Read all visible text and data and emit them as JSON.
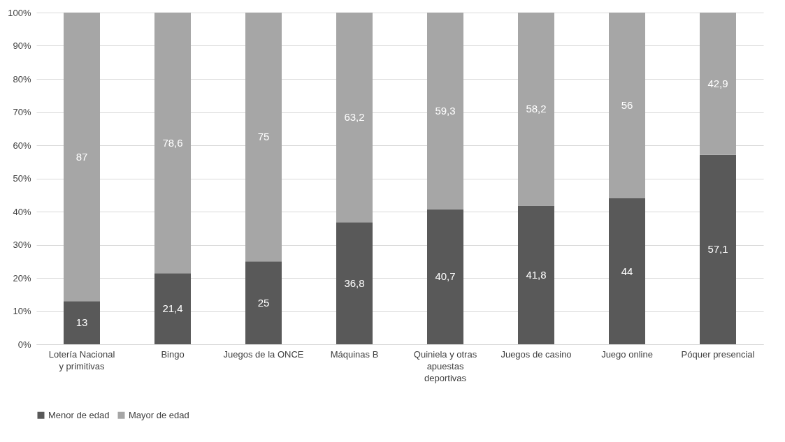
{
  "chart_data": {
    "type": "bar",
    "stacked": true,
    "categories": [
      "Lotería Nacional y primitivas",
      "Bingo",
      "Juegos de la ONCE",
      "Máquinas B",
      "Quiniela y otras apuestas deportivas",
      "Juegos de casino",
      "Juego online",
      "Póquer presencial"
    ],
    "series": [
      {
        "name": "Menor de edad",
        "color": "#595959",
        "values": [
          13,
          21.4,
          25,
          36.8,
          40.7,
          41.8,
          44,
          57.1
        ],
        "value_labels": [
          "13",
          "21,4",
          "25",
          "36,8",
          "40,7",
          "41,8",
          "44",
          "57,1"
        ]
      },
      {
        "name": "Mayor de edad",
        "color": "#a6a6a6",
        "values": [
          87,
          78.6,
          75,
          63.2,
          59.3,
          58.2,
          56,
          42.9
        ],
        "value_labels": [
          "87",
          "78,6",
          "75",
          "63,2",
          "59,3",
          "58,2",
          "56",
          "42,9"
        ]
      }
    ],
    "ylim": [
      0,
      100
    ],
    "yticks": [
      {
        "value": 0,
        "label": "0%"
      },
      {
        "value": 10,
        "label": "10%"
      },
      {
        "value": 20,
        "label": "20%"
      },
      {
        "value": 30,
        "label": "30%"
      },
      {
        "value": 40,
        "label": "40%"
      },
      {
        "value": 50,
        "label": "50%"
      },
      {
        "value": 60,
        "label": "60%"
      },
      {
        "value": 70,
        "label": "70%"
      },
      {
        "value": 80,
        "label": "80%"
      },
      {
        "value": 90,
        "label": "90%"
      },
      {
        "value": 100,
        "label": "100%"
      }
    ],
    "grid": "y",
    "legend": "bottom"
  }
}
